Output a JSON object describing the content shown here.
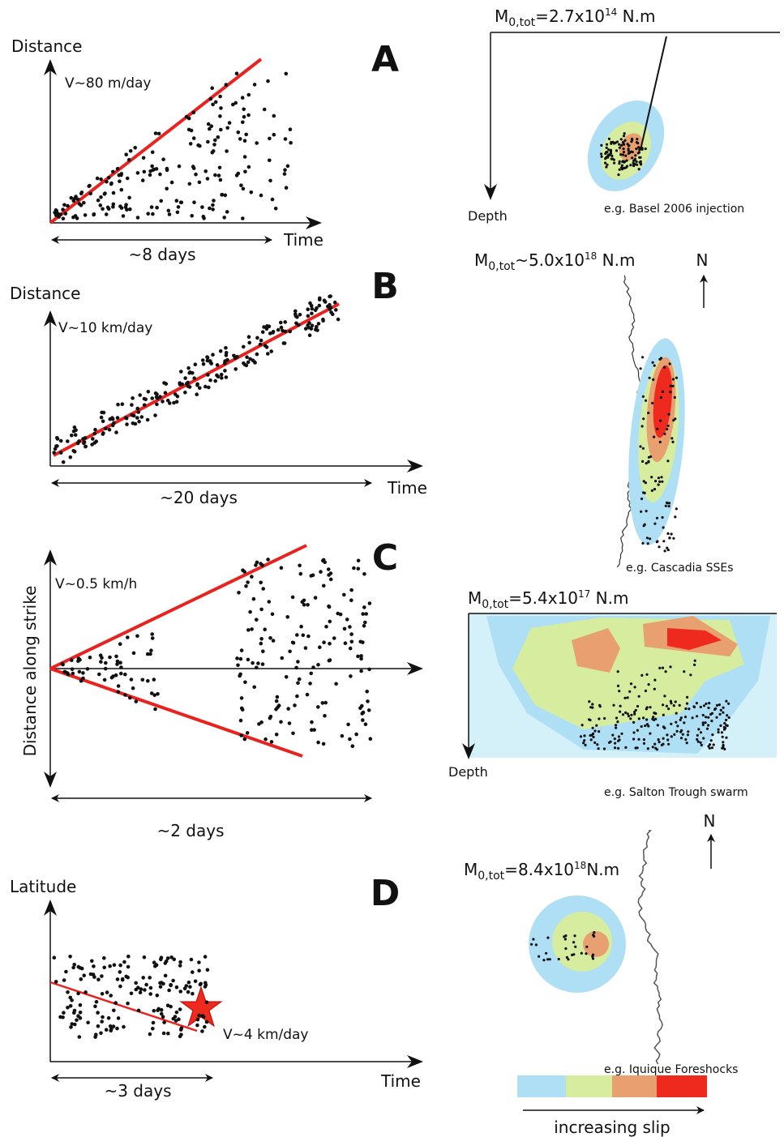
{
  "panels": [
    {
      "letter": "A",
      "left": {
        "y_label": "Distance",
        "velocity": "V~80 m/day",
        "x_label": "Time",
        "duration": "~8 days"
      },
      "right": {
        "moment": {
          "symbol": "M",
          "subscript": "0,tot",
          "relation": "=",
          "mantissa": "2.7x10",
          "exponent": "14",
          "unit": " N.m"
        },
        "depth_label": "Depth",
        "example": "e.g. Basel 2006 injection"
      }
    },
    {
      "letter": "B",
      "left": {
        "y_label": "Distance",
        "velocity": "V~10 km/day",
        "x_label": "Time",
        "duration": "~20 days"
      },
      "right": {
        "moment": {
          "symbol": "M",
          "subscript": "0,tot",
          "relation": "~",
          "mantissa": "5.0x10",
          "exponent": "18",
          "unit": " N.m"
        },
        "north": "N",
        "example": "e.g. Cascadia SSEs"
      }
    },
    {
      "letter": "C",
      "left": {
        "y_label": "Distance along strike",
        "velocity": "V~0.5 km/h",
        "duration": "~2 days"
      },
      "right": {
        "moment": {
          "symbol": "M",
          "subscript": "0,tot",
          "relation": "=",
          "mantissa": "5.4x10",
          "exponent": "17",
          "unit": " N.m"
        },
        "depth_label": "Depth",
        "example": "e.g. Salton Trough swarm"
      }
    },
    {
      "letter": "D",
      "left": {
        "y_label": "Latitude",
        "velocity": "V~4 km/day",
        "x_label": "Time",
        "duration": "~3 days"
      },
      "right": {
        "moment": {
          "symbol": "M",
          "subscript": "0,tot",
          "relation": "=",
          "mantissa": "8.4x10",
          "exponent": "18",
          "unit": "N.m"
        },
        "north": "N",
        "example": "e.g. Iquique Foreshocks"
      }
    }
  ],
  "legend": {
    "label": "increasing slip"
  }
}
